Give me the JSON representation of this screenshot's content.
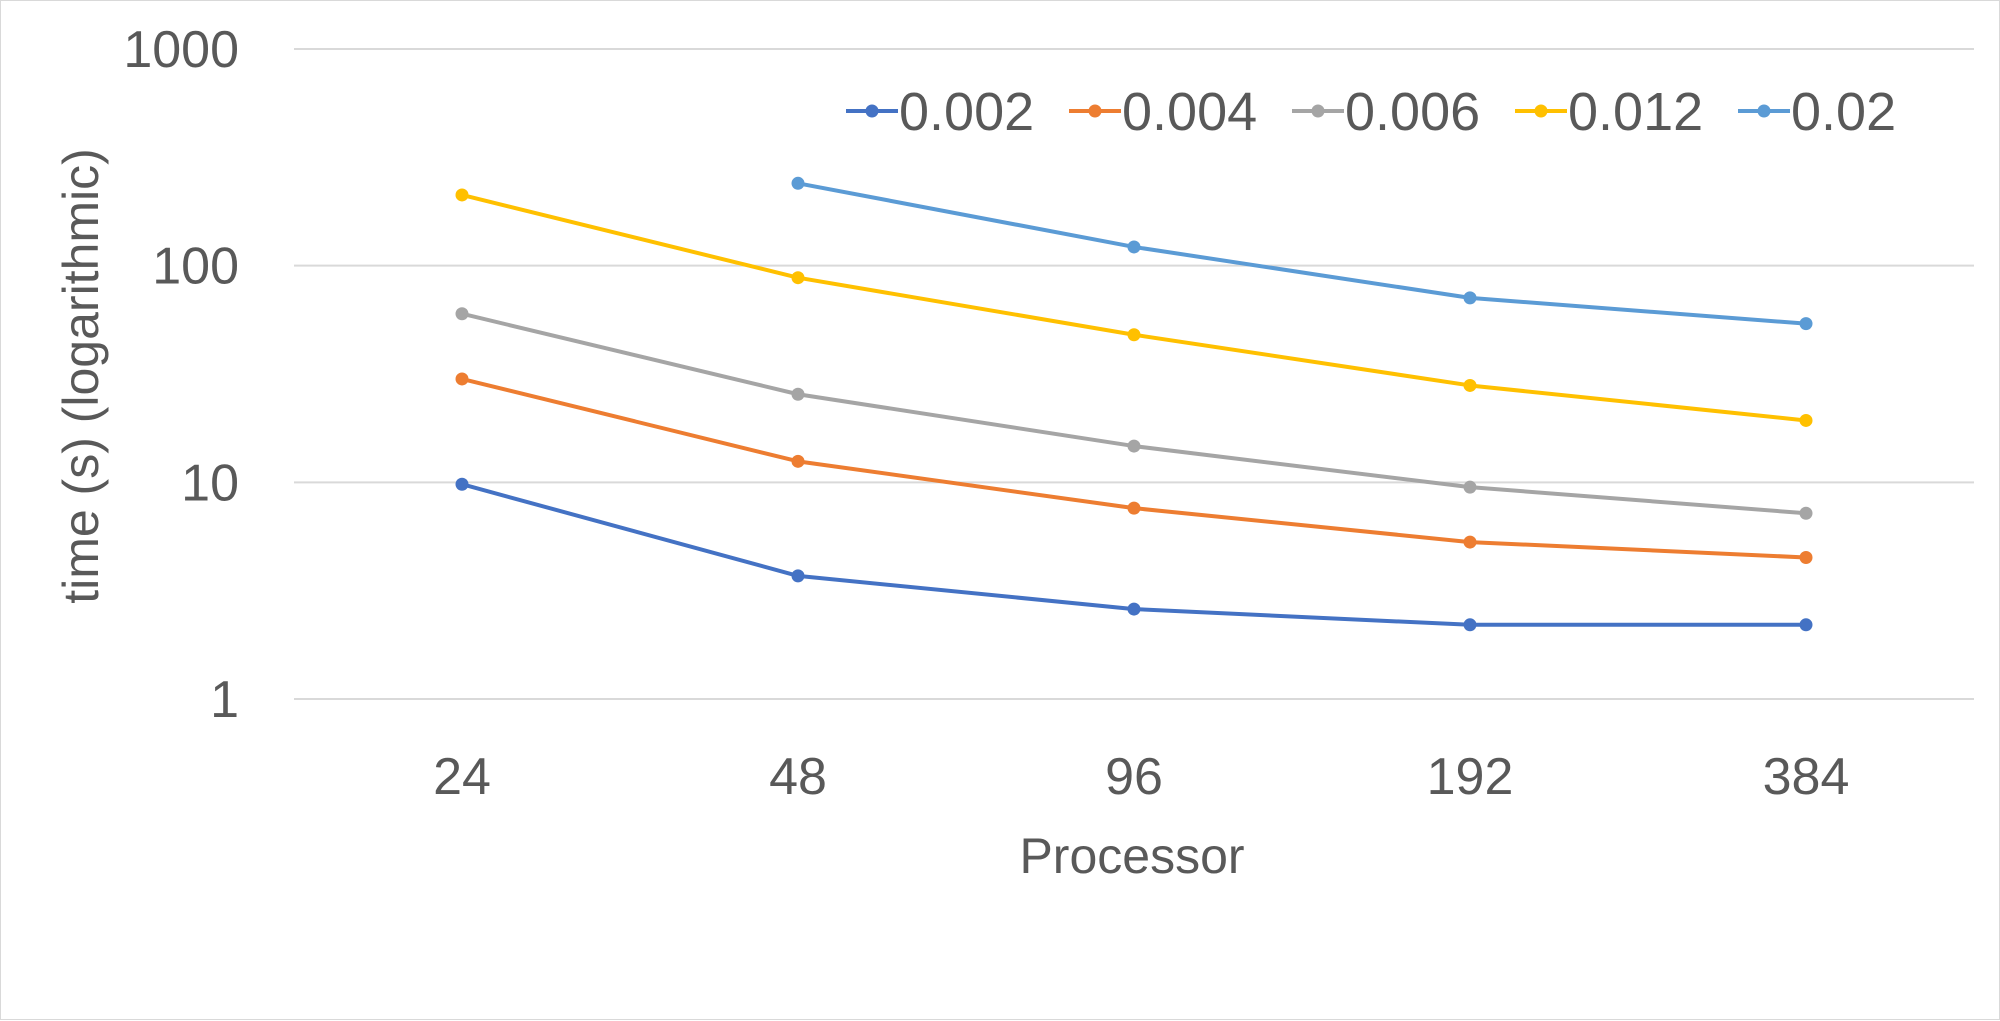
{
  "chart_data": {
    "type": "line",
    "title": "",
    "xlabel": "Processor",
    "ylabel": "time (s) (logarithmic)",
    "y_scale": "log",
    "ylim": [
      1,
      1000
    ],
    "y_ticks": [
      "1",
      "10",
      "100",
      "1000"
    ],
    "categories": [
      "24",
      "48",
      "96",
      "192",
      "384"
    ],
    "grid": "horizontal",
    "legend_position": "top-right",
    "series": [
      {
        "name": "0.002",
        "color": "#4472C4",
        "values": [
          9.8,
          3.7,
          2.6,
          2.2,
          2.2
        ]
      },
      {
        "name": "0.004",
        "color": "#ED7D31",
        "values": [
          30,
          12.5,
          7.6,
          5.3,
          4.5
        ]
      },
      {
        "name": "0.006",
        "color": "#A5A5A5",
        "values": [
          60,
          25.5,
          14.7,
          9.5,
          7.2
        ]
      },
      {
        "name": "0.012",
        "color": "#FFC000",
        "values": [
          212,
          88,
          48,
          28,
          19.3
        ]
      },
      {
        "name": "0.02",
        "color": "#5B9BD5",
        "values": [
          null,
          240,
          122,
          71,
          54
        ]
      }
    ]
  }
}
